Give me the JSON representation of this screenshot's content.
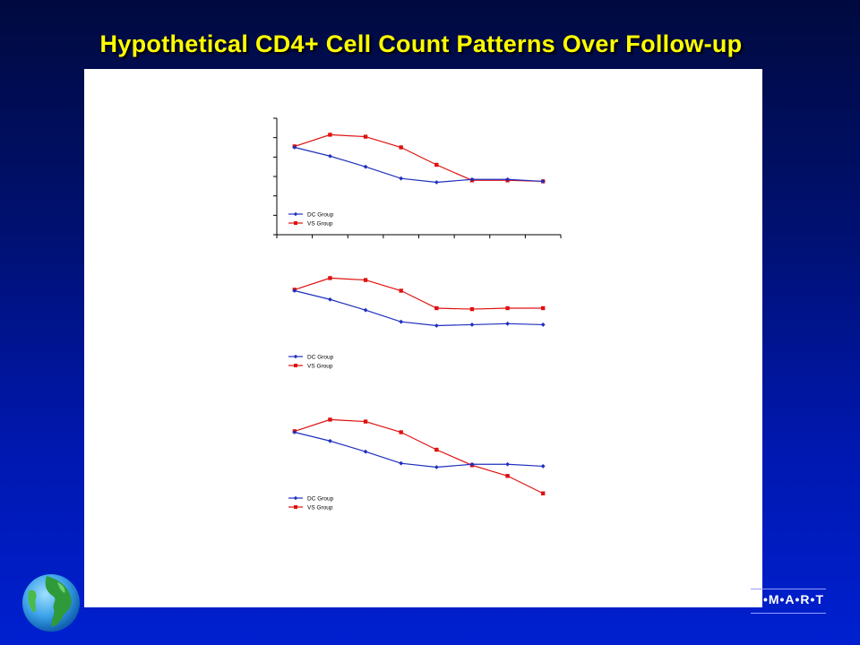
{
  "slide": {
    "title": "Hypothetical CD4+ Cell Count Patterns Over Follow-up",
    "logo_text": "•M•A•R•T",
    "colors": {
      "title": "#ffff00",
      "background": "#001070",
      "dc": "#1f2fbf",
      "vs": "#e01010"
    }
  },
  "chart_data": [
    {
      "type": "line",
      "title": "",
      "xlabel": "",
      "ylabel": "",
      "x": [
        1,
        2,
        3,
        4,
        5,
        6,
        7,
        8
      ],
      "ylim": [
        0,
        6
      ],
      "series": [
        {
          "name": "DC Group",
          "color": "#1f2fbf",
          "marker": "diamond",
          "values": [
            4.5,
            4.05,
            3.5,
            2.9,
            2.7,
            2.85,
            2.85,
            2.75
          ]
        },
        {
          "name": "VS Group",
          "color": "#e01010",
          "marker": "square",
          "values": [
            4.55,
            5.15,
            5.05,
            4.5,
            3.6,
            2.8,
            2.8,
            2.75
          ]
        }
      ],
      "axes_visible": true,
      "legend": "bottom-left"
    },
    {
      "type": "line",
      "title": "",
      "xlabel": "",
      "ylabel": "",
      "x": [
        1,
        2,
        3,
        4,
        5,
        6,
        7,
        8
      ],
      "ylim": [
        0,
        6
      ],
      "series": [
        {
          "name": "DC Group",
          "color": "#1f2fbf",
          "marker": "diamond",
          "values": [
            4.5,
            4.05,
            3.5,
            2.9,
            2.7,
            2.75,
            2.8,
            2.75
          ]
        },
        {
          "name": "VS Group",
          "color": "#e01010",
          "marker": "square",
          "values": [
            4.55,
            5.15,
            5.05,
            4.5,
            3.6,
            3.55,
            3.6,
            3.6
          ]
        }
      ],
      "axes_visible": false,
      "legend": "bottom-left"
    },
    {
      "type": "line",
      "title": "",
      "xlabel": "",
      "ylabel": "",
      "x": [
        1,
        2,
        3,
        4,
        5,
        6,
        7,
        8
      ],
      "ylim": [
        0,
        6
      ],
      "series": [
        {
          "name": "DC Group",
          "color": "#1f2fbf",
          "marker": "diamond",
          "values": [
            4.5,
            4.05,
            3.5,
            2.9,
            2.7,
            2.85,
            2.85,
            2.75
          ]
        },
        {
          "name": "VS Group",
          "color": "#e01010",
          "marker": "square",
          "values": [
            4.55,
            5.15,
            5.05,
            4.5,
            3.6,
            2.8,
            2.25,
            1.35
          ]
        }
      ],
      "axes_visible": false,
      "legend": "bottom-left"
    }
  ]
}
